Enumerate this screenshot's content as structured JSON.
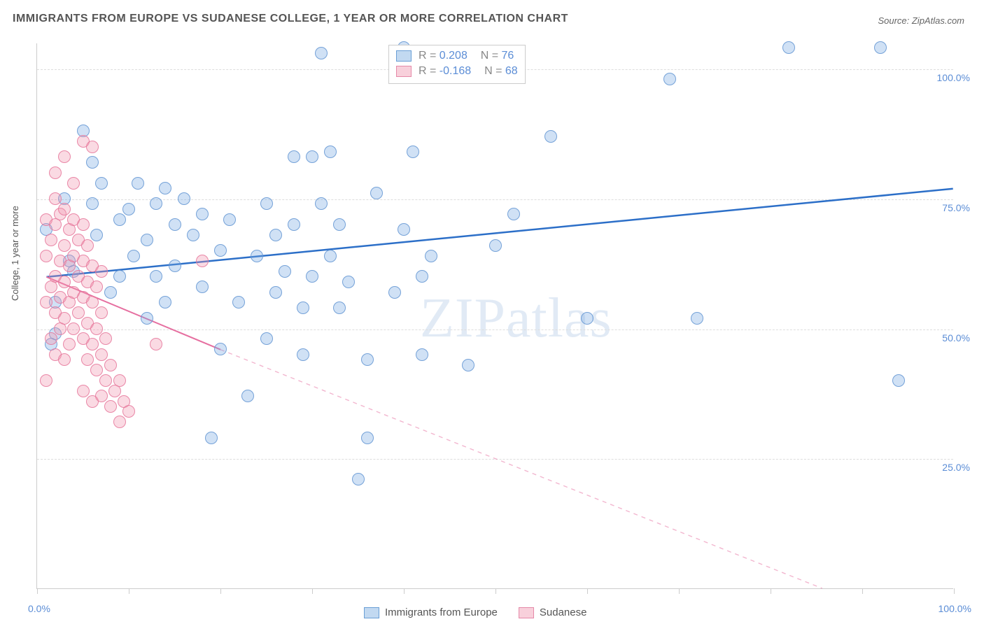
{
  "title": "IMMIGRANTS FROM EUROPE VS SUDANESE COLLEGE, 1 YEAR OR MORE CORRELATION CHART",
  "source": "Source: ZipAtlas.com",
  "ylabel": "College, 1 year or more",
  "watermark_a": "ZIP",
  "watermark_b": "atlas",
  "chart": {
    "type": "scatter",
    "background_color": "#ffffff",
    "grid_color": "#dddddd",
    "axis_color": "#cccccc",
    "xlim": [
      0,
      100
    ],
    "ylim": [
      0,
      105
    ],
    "y_ticks": [
      25,
      50,
      75,
      100
    ],
    "y_tick_labels": [
      "25.0%",
      "50.0%",
      "75.0%",
      "100.0%"
    ],
    "x_ticks": [
      0,
      10,
      20,
      30,
      40,
      50,
      60,
      70,
      80,
      90,
      100
    ],
    "x_left_label": "0.0%",
    "x_right_label": "100.0%",
    "point_radius": 9,
    "series": [
      {
        "name": "Immigrants from Europe",
        "fill": "rgba(120, 170, 225, 0.35)",
        "stroke": "rgba(100, 150, 210, 0.85)",
        "swatch_fill": "rgba(120, 170, 225, 0.45)",
        "swatch_stroke": "#6a9fd6",
        "trend_color": "#2c6fc8",
        "trend_width": 2.5,
        "trend_y_at_x0": 60,
        "trend_y_at_x100": 77,
        "dash_start_x": null,
        "R": "0.208",
        "N": "76",
        "points": [
          [
            2,
            49
          ],
          [
            3,
            75
          ],
          [
            3.5,
            63
          ],
          [
            5,
            88
          ],
          [
            6,
            74
          ],
          [
            6.5,
            68
          ],
          [
            7,
            78
          ],
          [
            8,
            57
          ],
          [
            9,
            71
          ],
          [
            9,
            60
          ],
          [
            10,
            73
          ],
          [
            10.5,
            64
          ],
          [
            11,
            78
          ],
          [
            12,
            52
          ],
          [
            12,
            67
          ],
          [
            13,
            74
          ],
          [
            13,
            60
          ],
          [
            14,
            77
          ],
          [
            15,
            70
          ],
          [
            15,
            62
          ],
          [
            16,
            75
          ],
          [
            17,
            68
          ],
          [
            18,
            58
          ],
          [
            18,
            72
          ],
          [
            19,
            29
          ],
          [
            20,
            46
          ],
          [
            20,
            65
          ],
          [
            21,
            71
          ],
          [
            22,
            55
          ],
          [
            23,
            37
          ],
          [
            24,
            64
          ],
          [
            25,
            48
          ],
          [
            25,
            74
          ],
          [
            26,
            68
          ],
          [
            26,
            57
          ],
          [
            27,
            61
          ],
          [
            28,
            83
          ],
          [
            28,
            70
          ],
          [
            29,
            54
          ],
          [
            29,
            45
          ],
          [
            30,
            83
          ],
          [
            30,
            60
          ],
          [
            31,
            103
          ],
          [
            31,
            74
          ],
          [
            32,
            64
          ],
          [
            32,
            84
          ],
          [
            33,
            54
          ],
          [
            33,
            70
          ],
          [
            34,
            59
          ],
          [
            35,
            21
          ],
          [
            36,
            44
          ],
          [
            37,
            76
          ],
          [
            39,
            57
          ],
          [
            40,
            104
          ],
          [
            40,
            69
          ],
          [
            41,
            84
          ],
          [
            42,
            60
          ],
          [
            42,
            45
          ],
          [
            43,
            64
          ],
          [
            47,
            43
          ],
          [
            50,
            66
          ],
          [
            52,
            72
          ],
          [
            56,
            87
          ],
          [
            60,
            52
          ],
          [
            69,
            98
          ],
          [
            72,
            52
          ],
          [
            82,
            104
          ],
          [
            92,
            104
          ],
          [
            94,
            40
          ],
          [
            2,
            55
          ],
          [
            4,
            61
          ],
          [
            1,
            69
          ],
          [
            1.5,
            47
          ],
          [
            6,
            82
          ],
          [
            14,
            55
          ],
          [
            36,
            29
          ]
        ]
      },
      {
        "name": "Sudanese",
        "fill": "rgba(240, 150, 175, 0.35)",
        "stroke": "rgba(230, 120, 155, 0.85)",
        "swatch_fill": "rgba(240, 150, 175, 0.45)",
        "swatch_stroke": "#e589a8",
        "trend_color": "#e66fa0",
        "trend_width": 2,
        "trend_y_at_x0": 60,
        "trend_y_at_x100": -10,
        "dash_start_x": 20,
        "R": "-0.168",
        "N": "68",
        "points": [
          [
            1,
            40
          ],
          [
            1,
            55
          ],
          [
            1,
            64
          ],
          [
            1,
            71
          ],
          [
            1.5,
            48
          ],
          [
            1.5,
            58
          ],
          [
            1.5,
            67
          ],
          [
            2,
            45
          ],
          [
            2,
            53
          ],
          [
            2,
            60
          ],
          [
            2,
            70
          ],
          [
            2,
            75
          ],
          [
            2,
            80
          ],
          [
            2.5,
            50
          ],
          [
            2.5,
            56
          ],
          [
            2.5,
            63
          ],
          [
            2.5,
            72
          ],
          [
            3,
            44
          ],
          [
            3,
            52
          ],
          [
            3,
            59
          ],
          [
            3,
            66
          ],
          [
            3,
            73
          ],
          [
            3,
            83
          ],
          [
            3.5,
            47
          ],
          [
            3.5,
            55
          ],
          [
            3.5,
            62
          ],
          [
            3.5,
            69
          ],
          [
            4,
            50
          ],
          [
            4,
            57
          ],
          [
            4,
            64
          ],
          [
            4,
            71
          ],
          [
            4,
            78
          ],
          [
            4.5,
            53
          ],
          [
            4.5,
            60
          ],
          [
            4.5,
            67
          ],
          [
            5,
            38
          ],
          [
            5,
            48
          ],
          [
            5,
            56
          ],
          [
            5,
            63
          ],
          [
            5,
            70
          ],
          [
            5,
            86
          ],
          [
            5.5,
            44
          ],
          [
            5.5,
            51
          ],
          [
            5.5,
            59
          ],
          [
            5.5,
            66
          ],
          [
            6,
            36
          ],
          [
            6,
            47
          ],
          [
            6,
            55
          ],
          [
            6,
            62
          ],
          [
            6,
            85
          ],
          [
            6.5,
            42
          ],
          [
            6.5,
            50
          ],
          [
            6.5,
            58
          ],
          [
            7,
            37
          ],
          [
            7,
            45
          ],
          [
            7,
            53
          ],
          [
            7,
            61
          ],
          [
            7.5,
            40
          ],
          [
            7.5,
            48
          ],
          [
            8,
            35
          ],
          [
            8,
            43
          ],
          [
            8.5,
            38
          ],
          [
            9,
            32
          ],
          [
            9,
            40
          ],
          [
            9.5,
            36
          ],
          [
            10,
            34
          ],
          [
            13,
            47
          ],
          [
            18,
            63
          ]
        ]
      }
    ]
  },
  "legend": {
    "items": [
      {
        "label": "Immigrants from Europe",
        "series": 0
      },
      {
        "label": "Sudanese",
        "series": 1
      }
    ]
  }
}
